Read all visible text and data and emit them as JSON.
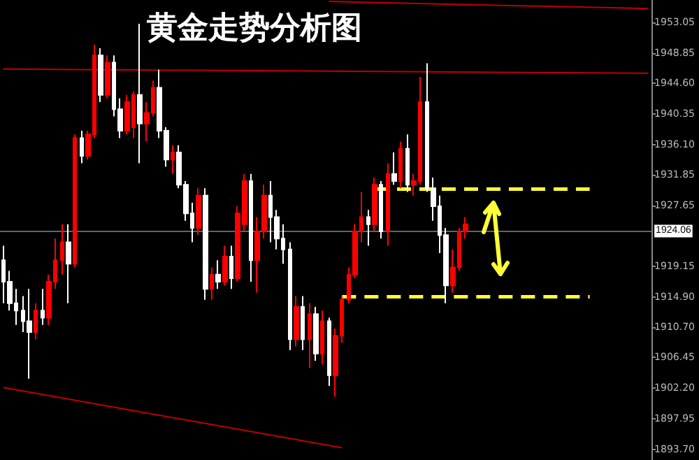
{
  "chart_data": {
    "type": "candlestick",
    "title": "黄金走势分析图",
    "categories": [
      null,
      null,
      null,
      null,
      null,
      null,
      null,
      null,
      null,
      null,
      null,
      null,
      null,
      null,
      null,
      null,
      null,
      null,
      null,
      null,
      null,
      null,
      null,
      null,
      null,
      null,
      null,
      null,
      null,
      null,
      null,
      null,
      null,
      null,
      null,
      null,
      null,
      null,
      null,
      null,
      null,
      null,
      null,
      null,
      null,
      null,
      null,
      null,
      null,
      null,
      null,
      null,
      null,
      null,
      null,
      null,
      null,
      null,
      null,
      null,
      null,
      null,
      null,
      null,
      null,
      null,
      null,
      null,
      null,
      null,
      null,
      null,
      null,
      null,
      null,
      null,
      null,
      null,
      null,
      null,
      null,
      null,
      null,
      null,
      null,
      null,
      null,
      null,
      null,
      null,
      null,
      null,
      null,
      null,
      null,
      null,
      null,
      null,
      null,
      null
    ],
    "ohlc": [
      [
        1920,
        1922,
        1914,
        1917
      ],
      [
        1917,
        1918.5,
        1913,
        1914
      ],
      [
        1914,
        1916,
        1911,
        1913
      ],
      [
        1913,
        1915,
        1910,
        1911.5
      ],
      [
        1911.5,
        1916,
        1903.5,
        1910
      ],
      [
        1910,
        1914,
        1909,
        1913
      ],
      [
        1913,
        1916,
        1911,
        1912
      ],
      [
        1912,
        1918,
        1911,
        1917
      ],
      [
        1917,
        1923,
        1916,
        1920
      ],
      [
        1920,
        1925,
        1918,
        1922.5
      ],
      [
        1922.5,
        1925,
        1914,
        1919.5
      ],
      [
        1919.5,
        1937.5,
        1919,
        1937
      ],
      [
        1937,
        1938,
        1933.5,
        1934.5
      ],
      [
        1934.5,
        1938,
        1934,
        1937.5
      ],
      [
        1937.5,
        1950,
        1937,
        1948.5
      ],
      [
        1948.5,
        1949.5,
        1942,
        1943
      ],
      [
        1943,
        1948.5,
        1942.5,
        1947.5
      ],
      [
        1947.5,
        1948.5,
        1940,
        1941
      ],
      [
        1941,
        1942.5,
        1937,
        1938
      ],
      [
        1938,
        1943,
        1937.5,
        1942
      ],
      [
        1938.5,
        1943.5,
        1937,
        1943
      ],
      [
        1943,
        1952.9,
        1933.5,
        1939
      ],
      [
        1939,
        1942,
        1936.5,
        1940.5
      ],
      [
        1940.5,
        1945,
        1940,
        1944
      ],
      [
        1944,
        1946.5,
        1937,
        1938
      ],
      [
        1938,
        1938.5,
        1933,
        1934
      ],
      [
        1934,
        1936,
        1932,
        1935
      ],
      [
        1935,
        1936,
        1930,
        1930.5
      ],
      [
        1930.5,
        1931,
        1925.5,
        1926.5
      ],
      [
        1926.5,
        1928,
        1922.5,
        1924.5
      ],
      [
        1924.5,
        1930,
        1923.5,
        1929
      ],
      [
        1929,
        1930,
        1914.5,
        1916
      ],
      [
        1916,
        1919,
        1914.5,
        1918
      ],
      [
        1918,
        1920,
        1916,
        1917
      ],
      [
        1917,
        1922,
        1916.5,
        1920.5
      ],
      [
        1920.5,
        1922,
        1916,
        1917.5
      ],
      [
        1917.5,
        1927.5,
        1917,
        1926.5
      ],
      [
        1925,
        1932,
        1924,
        1931
      ],
      [
        1931,
        1932,
        1917,
        1920
      ],
      [
        1920,
        1926,
        1915.5,
        1924
      ],
      [
        1924,
        1930.5,
        1923,
        1929
      ],
      [
        1929,
        1931,
        1922.5,
        1926
      ],
      [
        1926,
        1927,
        1921.5,
        1923
      ],
      [
        1923,
        1925,
        1919.5,
        1921.5
      ],
      [
        1921.5,
        1922.5,
        1907.5,
        1909
      ],
      [
        1909,
        1915,
        1908,
        1913.5
      ],
      [
        1913.5,
        1915,
        1907.5,
        1909
      ],
      [
        1909,
        1914,
        1905,
        1912.5
      ],
      [
        1912.5,
        1913.5,
        1906,
        1907
      ],
      [
        1907,
        1913,
        1905.5,
        1911.5
      ],
      [
        1911.5,
        1912,
        1902.5,
        1904
      ],
      [
        1904,
        1910.5,
        1901,
        1909.5
      ],
      [
        1909.5,
        1915,
        1908.5,
        1914.5
      ],
      [
        1914.5,
        1919,
        1914,
        1918
      ],
      [
        1918,
        1925,
        1917.5,
        1924
      ],
      [
        1924,
        1929.5,
        1922.5,
        1926
      ],
      [
        1926,
        1927,
        1922,
        1925
      ],
      [
        1925,
        1931.5,
        1924,
        1930.5
      ],
      [
        1930.5,
        1931,
        1923,
        1924
      ],
      [
        1924,
        1933.5,
        1922,
        1932
      ],
      [
        1932,
        1935,
        1930.5,
        1931
      ],
      [
        1931,
        1936.5,
        1930,
        1935.5
      ],
      [
        1935.5,
        1937.5,
        1929.5,
        1930.5
      ],
      [
        1930.5,
        1932,
        1929,
        1931
      ],
      [
        1931,
        1945.5,
        1930.5,
        1942
      ],
      [
        1942,
        1947.4,
        1929.5,
        1930
      ],
      [
        1930,
        1931.5,
        1925.5,
        1927.5
      ],
      [
        1927.5,
        1929,
        1921,
        1923.5
      ],
      [
        1923.5,
        1924.5,
        1914,
        1916.5
      ],
      [
        1916.5,
        1921.5,
        1915.5,
        1919
      ],
      [
        1919,
        1924.5,
        1918.5,
        1924
      ],
      [
        1924,
        1926,
        1923,
        1925
      ],
      null,
      null,
      null,
      null,
      null,
      null,
      null,
      null,
      null,
      null,
      null,
      null,
      null,
      null,
      null,
      null,
      null,
      null,
      null,
      null,
      null,
      null,
      null,
      null,
      null,
      null,
      null,
      null
    ],
    "series": [
      {
        "type": "line",
        "color": "#c00000",
        "values": [
          1946.6,
          null,
          null,
          null,
          null,
          null,
          null,
          null,
          null,
          null,
          null,
          null,
          null,
          null,
          null,
          null,
          null,
          null,
          null,
          null,
          null,
          null,
          null,
          null,
          null,
          null,
          null,
          null,
          null,
          null,
          null,
          null,
          null,
          null,
          null,
          null,
          null,
          null,
          null,
          null,
          null,
          null,
          null,
          null,
          null,
          null,
          null,
          null,
          null,
          null,
          null,
          null,
          null,
          null,
          null,
          null,
          null,
          null,
          null,
          null,
          null,
          null,
          null,
          null,
          null,
          null,
          null,
          null,
          null,
          null,
          null,
          null,
          null,
          null,
          null,
          null,
          null,
          null,
          null,
          null,
          null,
          null,
          null,
          null,
          null,
          null,
          null,
          null,
          null,
          null,
          null,
          null,
          null,
          null,
          null,
          null,
          null,
          null,
          null,
          1946.0
        ]
      },
      {
        "type": "line",
        "color": "#c00000",
        "values": [
          1902.3,
          null,
          null,
          null,
          null,
          null,
          null,
          null,
          null,
          null,
          null,
          null,
          null,
          null,
          null,
          null,
          null,
          null,
          null,
          null,
          null,
          null,
          null,
          null,
          null,
          null,
          null,
          null,
          null,
          null,
          null,
          null,
          null,
          null,
          null,
          null,
          null,
          null,
          null,
          null,
          null,
          null,
          null,
          null,
          null,
          null,
          null,
          null,
          null,
          null,
          null,
          null,
          1893.9,
          null,
          null,
          null,
          null,
          null,
          null,
          null,
          null,
          null,
          null,
          null,
          null,
          null,
          null,
          null,
          null,
          null,
          null,
          null,
          null,
          null,
          null,
          null,
          null,
          null,
          null,
          null,
          null,
          null,
          null,
          null,
          null,
          null,
          null,
          null,
          null,
          null,
          null,
          null,
          null,
          null,
          null,
          null,
          null,
          null,
          null,
          null
        ]
      },
      {
        "type": "line",
        "color": "#c00000",
        "values": [
          null,
          null,
          null,
          null,
          null,
          null,
          null,
          null,
          null,
          null,
          null,
          null,
          null,
          null,
          null,
          null,
          null,
          null,
          null,
          null,
          null,
          null,
          null,
          null,
          null,
          null,
          null,
          null,
          null,
          null,
          null,
          null,
          null,
          null,
          null,
          null,
          null,
          null,
          null,
          null,
          null,
          null,
          null,
          null,
          null,
          null,
          null,
          null,
          null,
          null,
          1956.0,
          null,
          null,
          null,
          null,
          null,
          null,
          null,
          null,
          null,
          null,
          null,
          null,
          null,
          null,
          null,
          null,
          null,
          null,
          null,
          null,
          null,
          null,
          null,
          null,
          null,
          null,
          null,
          null,
          null,
          null,
          null,
          null,
          null,
          null,
          null,
          null,
          null,
          null,
          null,
          null,
          null,
          null,
          null,
          null,
          null,
          null,
          null,
          null,
          1955.0
        ]
      },
      {
        "type": "line",
        "color": "#ffff33",
        "line_style": "dashed",
        "values": [
          null,
          null,
          null,
          null,
          null,
          null,
          null,
          null,
          null,
          null,
          null,
          null,
          null,
          null,
          null,
          null,
          null,
          null,
          null,
          null,
          null,
          null,
          null,
          null,
          null,
          null,
          null,
          null,
          null,
          null,
          null,
          null,
          null,
          null,
          null,
          null,
          null,
          null,
          null,
          null,
          null,
          null,
          null,
          null,
          null,
          null,
          null,
          null,
          null,
          null,
          null,
          null,
          null,
          null,
          null,
          null,
          null,
          1929.9,
          null,
          null,
          null,
          null,
          null,
          null,
          null,
          null,
          null,
          null,
          null,
          null,
          null,
          null,
          null,
          null,
          null,
          null,
          null,
          null,
          null,
          null,
          null,
          null,
          null,
          null,
          null,
          null,
          null,
          null,
          null,
          null,
          1929.9,
          null,
          null,
          null,
          null,
          null,
          null,
          null,
          null,
          null
        ]
      },
      {
        "type": "line",
        "color": "#ffff33",
        "line_style": "dashed",
        "values": [
          null,
          null,
          null,
          null,
          null,
          null,
          null,
          null,
          null,
          null,
          null,
          null,
          null,
          null,
          null,
          null,
          null,
          null,
          null,
          null,
          null,
          null,
          null,
          null,
          null,
          null,
          null,
          null,
          null,
          null,
          null,
          null,
          null,
          null,
          null,
          null,
          null,
          null,
          null,
          null,
          null,
          null,
          null,
          null,
          null,
          null,
          null,
          null,
          null,
          null,
          null,
          null,
          1914.9,
          null,
          null,
          null,
          null,
          null,
          null,
          null,
          null,
          null,
          null,
          null,
          null,
          null,
          null,
          null,
          null,
          null,
          null,
          null,
          null,
          null,
          null,
          null,
          null,
          null,
          null,
          null,
          null,
          null,
          null,
          null,
          null,
          null,
          null,
          null,
          null,
          null,
          1914.9,
          null,
          null,
          null,
          null,
          null,
          null,
          null,
          null,
          null
        ]
      }
    ],
    "ylim": [
      1892.2,
      1956.2
    ],
    "yticks": [
      {
        "value": 1893.7,
        "label": "1893.70"
      },
      {
        "value": 1897.95,
        "label": "1897.95"
      },
      {
        "value": 1902.2,
        "label": "1902.20"
      },
      {
        "value": 1906.45,
        "label": "1906.45"
      },
      {
        "value": 1910.7,
        "label": "1910.70"
      },
      {
        "value": 1914.9,
        "label": "1914.90"
      },
      {
        "value": 1919.15,
        "label": "1919.15"
      },
      {
        "value": 1927.65,
        "label": "1927.65"
      },
      {
        "value": 1931.85,
        "label": "1931.85"
      },
      {
        "value": 1936.1,
        "label": "1936.10"
      },
      {
        "value": 1940.35,
        "label": "1940.35"
      },
      {
        "value": 1944.6,
        "label": "1944.60"
      },
      {
        "value": 1948.85,
        "label": "1948.85"
      },
      {
        "value": 1953.05,
        "label": "1953.05"
      }
    ],
    "ref_lines": [
      {
        "axis": "y",
        "value": 1924.06,
        "label": "1924.06",
        "color": "#5a6670"
      }
    ],
    "colors": [
      "#ffffff",
      "#ffffff",
      "#ffffff",
      "#ffffff",
      "#ffffff",
      "#ff0000",
      "#ffffff",
      "#ff0000",
      "#ff0000",
      "#ff0000",
      "#ffffff",
      "#ff0000",
      "#ffffff",
      "#ff0000",
      "#ff0000",
      "#ffffff",
      "#ff0000",
      "#ffffff",
      "#ffffff",
      "#ff0000",
      "#ff0000",
      "#ffffff",
      "#ff0000",
      "#ff0000",
      "#ffffff",
      "#ffffff",
      "#ff0000",
      "#ffffff",
      "#ffffff",
      "#ffffff",
      "#ff0000",
      "#ffffff",
      "#ff0000",
      "#ffffff",
      "#ff0000",
      "#ffffff",
      "#ff0000",
      "#ff0000",
      "#ffffff",
      "#ff0000",
      "#ff0000",
      "#ffffff",
      "#ffffff",
      "#ffffff",
      "#ffffff",
      "#ff0000",
      "#ffffff",
      "#ff0000",
      "#ffffff",
      "#ff0000",
      "#ffffff",
      "#ff0000",
      "#ff0000",
      "#ff0000",
      "#ff0000",
      "#ff0000",
      "#ffffff",
      "#ff0000",
      "#ffffff",
      "#ff0000",
      "#ffffff",
      "#ff0000",
      "#ffffff",
      "#ff0000",
      "#ff0000",
      "#ffffff",
      "#ffffff",
      "#ffffff",
      "#ffffff",
      "#ff0000",
      "#ff0000",
      "#ff0000",
      null,
      null,
      null,
      null,
      null,
      null,
      null,
      null,
      null,
      null,
      null,
      null,
      null,
      null,
      null,
      null,
      null,
      null,
      null,
      null,
      null,
      null,
      null,
      null,
      null,
      null,
      null,
      null
    ],
    "tick_labels": "y",
    "grid": false
  }
}
